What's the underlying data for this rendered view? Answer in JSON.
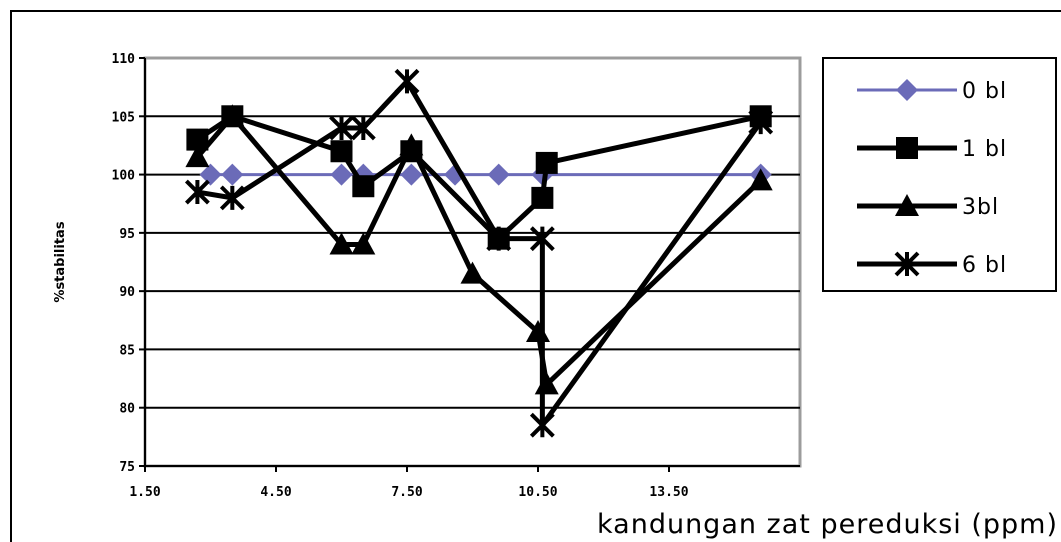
{
  "chart_data": {
    "type": "line",
    "title": "",
    "xlabel": "kandungan zat pereduksi (ppm)",
    "ylabel": "%stabilitas",
    "xlim": [
      1.5,
      16.5
    ],
    "ylim": [
      75,
      110
    ],
    "xticks": [
      1.5,
      4.5,
      7.5,
      10.5,
      13.5
    ],
    "xtick_labels": [
      "1.50",
      "4.50",
      "7.50",
      "10.50",
      "13.50"
    ],
    "yticks": [
      75,
      80,
      85,
      90,
      95,
      100,
      105,
      110
    ],
    "ytick_labels": [
      "75",
      "80",
      "85",
      "90",
      "95",
      "100",
      "105",
      "110"
    ],
    "grid": "horizontal",
    "legend_position": "top-right",
    "series": [
      {
        "name": "0 bl",
        "color": "#6b6bb8",
        "marker": "diamond",
        "points": [
          [
            3.0,
            100
          ],
          [
            3.5,
            100
          ],
          [
            6.0,
            100
          ],
          [
            6.5,
            100
          ],
          [
            7.6,
            100
          ],
          [
            8.6,
            100
          ],
          [
            9.6,
            100
          ],
          [
            10.6,
            100
          ],
          [
            15.6,
            100
          ]
        ]
      },
      {
        "name": "1 bl",
        "color": "#000000",
        "marker": "square",
        "points": [
          [
            2.7,
            103
          ],
          [
            3.5,
            105
          ],
          [
            6.0,
            102
          ],
          [
            6.5,
            99
          ],
          [
            7.6,
            102
          ],
          [
            9.6,
            94.5
          ],
          [
            10.6,
            98
          ],
          [
            10.7,
            101
          ],
          [
            15.6,
            105
          ]
        ]
      },
      {
        "name": "3bl",
        "color": "#000000",
        "marker": "triangle",
        "points": [
          [
            2.7,
            101.5
          ],
          [
            3.5,
            105
          ],
          [
            6.0,
            94
          ],
          [
            6.5,
            94
          ],
          [
            7.6,
            102.5
          ],
          [
            9.0,
            91.5
          ],
          [
            10.5,
            86.5
          ],
          [
            10.7,
            82
          ],
          [
            15.6,
            99.5
          ]
        ]
      },
      {
        "name": "6 bl",
        "color": "#000000",
        "marker": "cross",
        "points": [
          [
            2.7,
            98.5
          ],
          [
            3.5,
            98
          ],
          [
            6.0,
            104
          ],
          [
            6.5,
            104
          ],
          [
            7.5,
            108
          ],
          [
            9.6,
            94.5
          ],
          [
            10.6,
            94.5
          ],
          [
            10.6,
            78.5
          ],
          [
            15.6,
            104.5
          ]
        ]
      }
    ]
  }
}
